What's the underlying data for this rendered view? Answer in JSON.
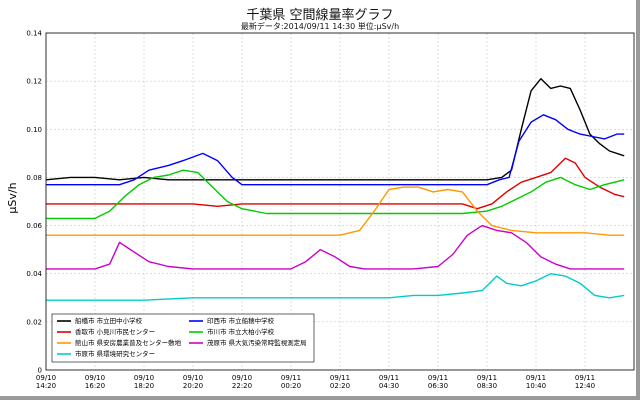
{
  "chart_data": {
    "type": "line",
    "title": "千葉県 空間線量率グラフ",
    "subtitle": "最新データ:2014/09/11 14:30 単位:μSv/h",
    "ylabel": "μSv/h",
    "xlabel": "",
    "ylim": [
      0,
      0.14
    ],
    "yticks": [
      0,
      0.02,
      0.04,
      0.06,
      0.08,
      0.1,
      0.12,
      0.14
    ],
    "ytick_labels": [
      "0",
      "0.02",
      "0.04",
      "0.06",
      "0.08",
      "0.10",
      "0.12",
      "0.14"
    ],
    "xlim": [
      0,
      24
    ],
    "xticks": [
      0,
      2,
      4,
      6,
      8,
      10,
      12,
      14,
      16,
      18,
      20,
      22
    ],
    "xtick_labels": [
      [
        "09/10",
        "14:20"
      ],
      [
        "09/10",
        "16:20"
      ],
      [
        "09/10",
        "18:20"
      ],
      [
        "09/10",
        "20:20"
      ],
      [
        "09/10",
        "22:20"
      ],
      [
        "09/11",
        "00:20"
      ],
      [
        "09/11",
        "02:20"
      ],
      [
        "09/11",
        "04:30"
      ],
      [
        "09/11",
        "06:30"
      ],
      [
        "09/11",
        "08:30"
      ],
      [
        "09/11",
        "10:40"
      ],
      [
        "09/11",
        "12:40"
      ]
    ],
    "grid": true,
    "legend_position": "bottom-left",
    "series": [
      {
        "name": "船橋市 市立田中小学校",
        "color": "#000000",
        "points": [
          [
            0,
            0.079
          ],
          [
            1,
            0.08
          ],
          [
            2,
            0.08
          ],
          [
            3,
            0.079
          ],
          [
            4,
            0.08
          ],
          [
            5,
            0.079
          ],
          [
            6,
            0.079
          ],
          [
            7,
            0.079
          ],
          [
            8,
            0.079
          ],
          [
            9,
            0.079
          ],
          [
            10,
            0.079
          ],
          [
            11,
            0.079
          ],
          [
            12,
            0.079
          ],
          [
            13,
            0.079
          ],
          [
            14,
            0.079
          ],
          [
            15,
            0.079
          ],
          [
            16,
            0.079
          ],
          [
            17,
            0.079
          ],
          [
            18,
            0.079
          ],
          [
            18.6,
            0.08
          ],
          [
            19.0,
            0.083
          ],
          [
            19.4,
            0.1
          ],
          [
            19.8,
            0.116
          ],
          [
            20.2,
            0.121
          ],
          [
            20.6,
            0.117
          ],
          [
            21.0,
            0.118
          ],
          [
            21.4,
            0.117
          ],
          [
            21.8,
            0.108
          ],
          [
            22.2,
            0.098
          ],
          [
            22.6,
            0.094
          ],
          [
            23.0,
            0.091
          ],
          [
            23.6,
            0.089
          ]
        ]
      },
      {
        "name": "印西市 市立船穂中学校",
        "color": "#0000ff",
        "points": [
          [
            0,
            0.077
          ],
          [
            1,
            0.077
          ],
          [
            2,
            0.077
          ],
          [
            3,
            0.077
          ],
          [
            3.6,
            0.079
          ],
          [
            4.2,
            0.083
          ],
          [
            5.0,
            0.085
          ],
          [
            5.6,
            0.087
          ],
          [
            6.4,
            0.09
          ],
          [
            7.0,
            0.087
          ],
          [
            7.6,
            0.08
          ],
          [
            8,
            0.077
          ],
          [
            9,
            0.077
          ],
          [
            10,
            0.077
          ],
          [
            11,
            0.077
          ],
          [
            12,
            0.077
          ],
          [
            13,
            0.077
          ],
          [
            14,
            0.077
          ],
          [
            15,
            0.077
          ],
          [
            16,
            0.077
          ],
          [
            17,
            0.077
          ],
          [
            18,
            0.077
          ],
          [
            18.5,
            0.079
          ],
          [
            18.9,
            0.08
          ],
          [
            19.3,
            0.095
          ],
          [
            19.8,
            0.103
          ],
          [
            20.3,
            0.106
          ],
          [
            20.8,
            0.104
          ],
          [
            21.3,
            0.1
          ],
          [
            21.8,
            0.098
          ],
          [
            22.3,
            0.097
          ],
          [
            22.8,
            0.096
          ],
          [
            23.3,
            0.098
          ],
          [
            23.6,
            0.098
          ]
        ]
      },
      {
        "name": "香取市 小見川市民センター",
        "color": "#e00000",
        "points": [
          [
            0,
            0.069
          ],
          [
            1,
            0.069
          ],
          [
            2,
            0.069
          ],
          [
            3,
            0.069
          ],
          [
            4,
            0.069
          ],
          [
            5,
            0.069
          ],
          [
            6,
            0.069
          ],
          [
            7,
            0.068
          ],
          [
            8,
            0.069
          ],
          [
            9,
            0.069
          ],
          [
            10,
            0.069
          ],
          [
            11,
            0.069
          ],
          [
            12,
            0.069
          ],
          [
            13,
            0.069
          ],
          [
            14,
            0.069
          ],
          [
            15,
            0.069
          ],
          [
            16,
            0.069
          ],
          [
            17,
            0.069
          ],
          [
            17.6,
            0.067
          ],
          [
            18.2,
            0.069
          ],
          [
            18.8,
            0.074
          ],
          [
            19.4,
            0.078
          ],
          [
            20.0,
            0.08
          ],
          [
            20.6,
            0.082
          ],
          [
            21.2,
            0.088
          ],
          [
            21.6,
            0.086
          ],
          [
            22.0,
            0.08
          ],
          [
            22.6,
            0.076
          ],
          [
            23.2,
            0.073
          ],
          [
            23.6,
            0.072
          ]
        ]
      },
      {
        "name": "市川市 市立大柏小学校",
        "color": "#00cc00",
        "points": [
          [
            0,
            0.063
          ],
          [
            1,
            0.063
          ],
          [
            2,
            0.063
          ],
          [
            2.6,
            0.066
          ],
          [
            3.2,
            0.072
          ],
          [
            3.8,
            0.077
          ],
          [
            4.4,
            0.08
          ],
          [
            5.0,
            0.081
          ],
          [
            5.6,
            0.083
          ],
          [
            6.2,
            0.082
          ],
          [
            6.8,
            0.076
          ],
          [
            7.4,
            0.07
          ],
          [
            8.0,
            0.067
          ],
          [
            9,
            0.065
          ],
          [
            10,
            0.065
          ],
          [
            11,
            0.065
          ],
          [
            12,
            0.065
          ],
          [
            13,
            0.065
          ],
          [
            14,
            0.065
          ],
          [
            15,
            0.065
          ],
          [
            16,
            0.065
          ],
          [
            17,
            0.065
          ],
          [
            18,
            0.066
          ],
          [
            18.6,
            0.068
          ],
          [
            19.2,
            0.071
          ],
          [
            19.8,
            0.074
          ],
          [
            20.4,
            0.078
          ],
          [
            21.0,
            0.08
          ],
          [
            21.6,
            0.077
          ],
          [
            22.2,
            0.075
          ],
          [
            22.8,
            0.077
          ],
          [
            23.6,
            0.079
          ]
        ]
      },
      {
        "name": "館山市 県安房農業普及センター敷地",
        "color": "#ff9900",
        "points": [
          [
            0,
            0.056
          ],
          [
            2,
            0.056
          ],
          [
            4,
            0.056
          ],
          [
            6,
            0.056
          ],
          [
            8,
            0.056
          ],
          [
            10,
            0.056
          ],
          [
            12,
            0.056
          ],
          [
            12.8,
            0.058
          ],
          [
            13.4,
            0.066
          ],
          [
            14.0,
            0.075
          ],
          [
            14.6,
            0.076
          ],
          [
            15.2,
            0.076
          ],
          [
            15.8,
            0.074
          ],
          [
            16.4,
            0.075
          ],
          [
            17.0,
            0.074
          ],
          [
            17.6,
            0.066
          ],
          [
            18.2,
            0.06
          ],
          [
            19,
            0.058
          ],
          [
            20,
            0.057
          ],
          [
            21,
            0.057
          ],
          [
            22,
            0.057
          ],
          [
            23,
            0.056
          ],
          [
            23.6,
            0.056
          ]
        ]
      },
      {
        "name": "茂原市 県大気汚染常時監視測定局",
        "color": "#cc00cc",
        "points": [
          [
            0,
            0.042
          ],
          [
            1,
            0.042
          ],
          [
            2,
            0.042
          ],
          [
            2.6,
            0.044
          ],
          [
            3.0,
            0.053
          ],
          [
            3.6,
            0.049
          ],
          [
            4.2,
            0.045
          ],
          [
            5.0,
            0.043
          ],
          [
            6,
            0.042
          ],
          [
            7,
            0.042
          ],
          [
            8,
            0.042
          ],
          [
            9,
            0.042
          ],
          [
            10,
            0.042
          ],
          [
            10.6,
            0.045
          ],
          [
            11.2,
            0.05
          ],
          [
            11.8,
            0.047
          ],
          [
            12.4,
            0.043
          ],
          [
            13,
            0.042
          ],
          [
            14,
            0.042
          ],
          [
            15,
            0.042
          ],
          [
            16,
            0.043
          ],
          [
            16.6,
            0.048
          ],
          [
            17.2,
            0.056
          ],
          [
            17.8,
            0.06
          ],
          [
            18.4,
            0.058
          ],
          [
            19.0,
            0.057
          ],
          [
            19.6,
            0.053
          ],
          [
            20.2,
            0.047
          ],
          [
            20.8,
            0.044
          ],
          [
            21.4,
            0.042
          ],
          [
            22,
            0.042
          ],
          [
            23,
            0.042
          ],
          [
            23.6,
            0.042
          ]
        ]
      },
      {
        "name": "市原市 県環境研究センター",
        "color": "#00cccc",
        "points": [
          [
            0,
            0.029
          ],
          [
            2,
            0.029
          ],
          [
            4,
            0.029
          ],
          [
            6,
            0.03
          ],
          [
            8,
            0.03
          ],
          [
            10,
            0.03
          ],
          [
            12,
            0.03
          ],
          [
            14,
            0.03
          ],
          [
            15,
            0.031
          ],
          [
            16,
            0.031
          ],
          [
            17,
            0.032
          ],
          [
            17.8,
            0.033
          ],
          [
            18.4,
            0.039
          ],
          [
            18.8,
            0.036
          ],
          [
            19.4,
            0.035
          ],
          [
            20.0,
            0.037
          ],
          [
            20.6,
            0.04
          ],
          [
            21.2,
            0.039
          ],
          [
            21.8,
            0.036
          ],
          [
            22.4,
            0.031
          ],
          [
            23.0,
            0.03
          ],
          [
            23.6,
            0.031
          ]
        ]
      }
    ]
  }
}
